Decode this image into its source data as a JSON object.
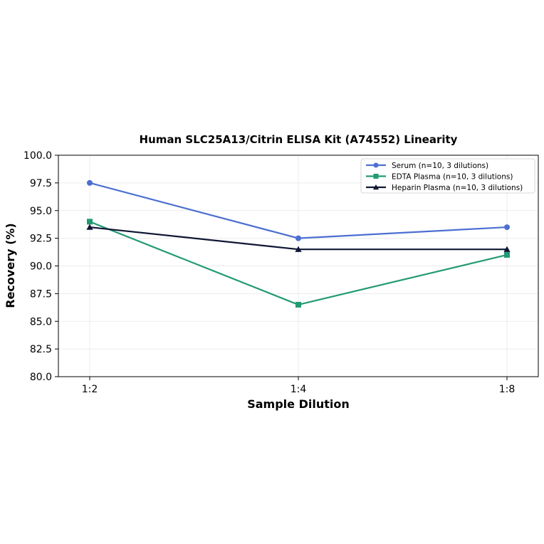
{
  "chart_data": {
    "type": "line",
    "title": "Human SLC25A13/Citrin ELISA Kit (A74552) Linearity",
    "xlabel": "Sample Dilution",
    "ylabel": "Recovery (%)",
    "categories": [
      "1:2",
      "1:4",
      "1:8"
    ],
    "ylim": [
      80.0,
      100.0
    ],
    "yticks": [
      "80.0",
      "82.5",
      "85.0",
      "87.5",
      "90.0",
      "92.5",
      "95.0",
      "97.5",
      "100.0"
    ],
    "grid": true,
    "legend_position": "top-right",
    "series": [
      {
        "name": "Serum (n=10, 3 dilutions)",
        "values": [
          97.5,
          92.5,
          93.5
        ],
        "color": "#4c6fd1",
        "marker": "circle"
      },
      {
        "name": "EDTA Plasma (n=10, 3 dilutions)",
        "values": [
          94.0,
          86.5,
          91.0
        ],
        "color": "#229a73",
        "marker": "square"
      },
      {
        "name": "Heparin Plasma (n=10, 3 dilutions)",
        "values": [
          93.5,
          91.5,
          91.5
        ],
        "color": "#0f1733",
        "marker": "triangle"
      }
    ]
  }
}
